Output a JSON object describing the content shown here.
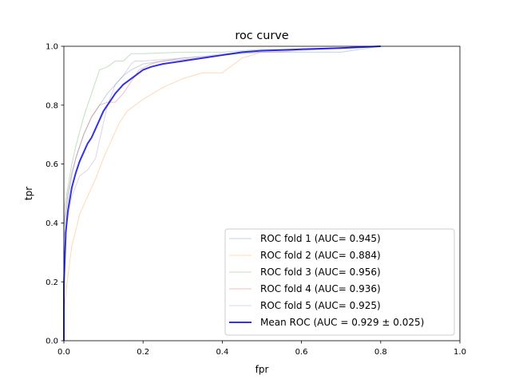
{
  "chart_data": {
    "type": "line",
    "title": "roc curve",
    "xlabel": "fpr",
    "ylabel": "tpr",
    "xlim": [
      0,
      1
    ],
    "ylim": [
      0,
      1
    ],
    "xticks": [
      "0.0",
      "0.2",
      "0.4",
      "0.6",
      "0.8",
      "1.0"
    ],
    "yticks": [
      "0.0",
      "0.2",
      "0.4",
      "0.6",
      "0.8",
      "1.0"
    ],
    "grid": false,
    "legend_position": "lower-right",
    "series": [
      {
        "name": "ROC fold 1 (AUC= 0.945)",
        "color": "#1f77b4",
        "x": [
          0,
          0,
          0.01,
          0.02,
          0.03,
          0.05,
          0.07,
          0.09,
          0.11,
          0.13,
          0.15,
          0.17,
          0.2,
          0.25,
          0.3,
          0.35,
          0.4,
          0.45,
          0.5,
          0.6,
          0.7,
          0.75,
          0.8
        ],
        "y": [
          0,
          0.38,
          0.48,
          0.56,
          0.62,
          0.7,
          0.76,
          0.8,
          0.84,
          0.87,
          0.9,
          0.92,
          0.94,
          0.95,
          0.96,
          0.965,
          0.97,
          0.975,
          0.98,
          0.98,
          0.98,
          0.99,
          1.0
        ]
      },
      {
        "name": "ROC fold 2 (AUC= 0.884)",
        "color": "#ff7f0e",
        "x": [
          0,
          0,
          0.01,
          0.02,
          0.04,
          0.06,
          0.08,
          0.1,
          0.12,
          0.14,
          0.16,
          0.2,
          0.25,
          0.3,
          0.35,
          0.4,
          0.42,
          0.45,
          0.5,
          0.55,
          0.6,
          0.7,
          0.8
        ],
        "y": [
          0,
          0.1,
          0.22,
          0.32,
          0.43,
          0.49,
          0.55,
          0.62,
          0.68,
          0.74,
          0.78,
          0.82,
          0.86,
          0.89,
          0.91,
          0.91,
          0.93,
          0.96,
          0.98,
          0.98,
          0.99,
          0.995,
          1.0
        ]
      },
      {
        "name": "ROC fold 3 (AUC= 0.956)",
        "color": "#2ca02c",
        "x": [
          0,
          0,
          0.01,
          0.02,
          0.03,
          0.05,
          0.07,
          0.09,
          0.11,
          0.13,
          0.15,
          0.17,
          0.2,
          0.3,
          0.4,
          0.5,
          0.6,
          0.7,
          0.8
        ],
        "y": [
          0,
          0.44,
          0.52,
          0.6,
          0.66,
          0.76,
          0.84,
          0.92,
          0.93,
          0.95,
          0.95,
          0.975,
          0.975,
          0.98,
          0.98,
          0.99,
          0.99,
          0.995,
          1.0
        ]
      },
      {
        "name": "ROC fold 4 (AUC= 0.936)",
        "color": "#d62728",
        "x": [
          0,
          0,
          0.01,
          0.02,
          0.03,
          0.05,
          0.07,
          0.09,
          0.11,
          0.13,
          0.15,
          0.17,
          0.19,
          0.22,
          0.25,
          0.3,
          0.35,
          0.4,
          0.45,
          0.5,
          0.6,
          0.7,
          0.8
        ],
        "y": [
          0,
          0.4,
          0.5,
          0.57,
          0.62,
          0.7,
          0.76,
          0.8,
          0.81,
          0.81,
          0.84,
          0.88,
          0.92,
          0.94,
          0.95,
          0.955,
          0.96,
          0.97,
          0.98,
          0.985,
          0.99,
          0.995,
          1.0
        ]
      },
      {
        "name": "ROC fold 5 (AUC= 0.925)",
        "color": "#9467bd",
        "x": [
          0,
          0,
          0.01,
          0.02,
          0.04,
          0.06,
          0.08,
          0.1,
          0.11,
          0.13,
          0.15,
          0.17,
          0.18,
          0.2,
          0.25,
          0.3,
          0.35,
          0.4,
          0.5,
          0.6,
          0.65,
          0.7,
          0.8
        ],
        "y": [
          0,
          0.35,
          0.42,
          0.49,
          0.56,
          0.58,
          0.62,
          0.74,
          0.8,
          0.87,
          0.9,
          0.94,
          0.95,
          0.95,
          0.955,
          0.96,
          0.965,
          0.975,
          0.98,
          0.985,
          0.99,
          0.995,
          1.0
        ]
      },
      {
        "name": "Mean ROC (AUC = 0.929 ± 0.025)",
        "color": "#0000dd",
        "mean": true,
        "x": [
          0,
          0,
          0.005,
          0.01,
          0.02,
          0.03,
          0.04,
          0.05,
          0.06,
          0.07,
          0.08,
          0.09,
          0.1,
          0.11,
          0.12,
          0.13,
          0.14,
          0.15,
          0.16,
          0.18,
          0.2,
          0.22,
          0.25,
          0.3,
          0.35,
          0.4,
          0.45,
          0.5,
          0.55,
          0.6,
          0.65,
          0.7,
          0.75,
          0.8
        ],
        "y": [
          0,
          0.19,
          0.37,
          0.44,
          0.52,
          0.57,
          0.61,
          0.64,
          0.67,
          0.69,
          0.72,
          0.75,
          0.78,
          0.8,
          0.82,
          0.84,
          0.855,
          0.87,
          0.88,
          0.9,
          0.92,
          0.93,
          0.94,
          0.95,
          0.96,
          0.97,
          0.98,
          0.985,
          0.987,
          0.99,
          0.992,
          0.994,
          0.997,
          1.0
        ]
      }
    ]
  }
}
